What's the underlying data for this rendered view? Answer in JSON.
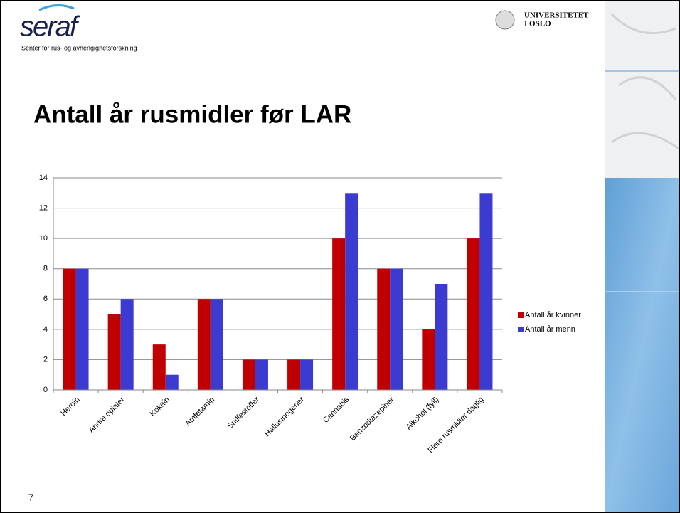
{
  "logo": {
    "name": "seraf",
    "subtitle": "Senter for rus- og avhengighetsforskning"
  },
  "university": {
    "line1": "UNIVERSITETET",
    "line2": "I OSLO"
  },
  "slide_number": 7,
  "chart_data": {
    "type": "bar",
    "title": "Antall år rusmidler før LAR",
    "categories": [
      "Heroin",
      "Andre opiater",
      "Kokain",
      "Amfetamin",
      "Sniffestoffer",
      "Hallusinogener",
      "Cannabis",
      "Benzodiazepiner",
      "Alkohol (fyll)",
      "Flere rusmidler daglig"
    ],
    "series": [
      {
        "name": "Antall år kvinner",
        "color": "#c00000",
        "values": [
          8,
          5,
          3,
          6,
          2,
          2,
          10,
          8,
          4,
          10
        ]
      },
      {
        "name": "Antall år menn",
        "color": "#3b3bd1",
        "values": [
          8,
          6,
          1,
          6,
          2,
          2,
          13,
          8,
          7,
          13
        ]
      }
    ],
    "ylim": [
      0,
      14
    ],
    "yticks": [
      0,
      2,
      4,
      6,
      8,
      10,
      12,
      14
    ],
    "grid": true,
    "legend": "right"
  }
}
